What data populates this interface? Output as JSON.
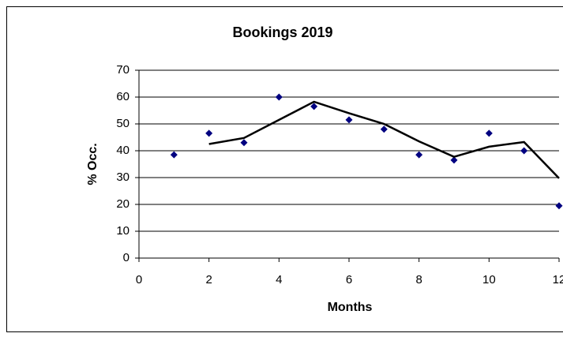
{
  "chart_data": {
    "type": "scatter",
    "title": "Bookings 2019",
    "x_label": "Months",
    "y_label": "% Occ.",
    "series": [
      {
        "color": "#000080",
        "x": [
          1,
          2,
          3,
          4,
          5,
          6,
          7,
          8,
          9,
          10,
          11,
          12
        ],
        "values": [
          38.5,
          46.5,
          43,
          60,
          56.5,
          51.5,
          48,
          38.5,
          36.5,
          46.5,
          40,
          19.5
        ]
      },
      {
        "type": "line",
        "color": "#000000",
        "x": [
          2,
          3,
          4,
          5,
          6,
          7,
          8,
          9,
          10,
          11,
          12
        ],
        "values": [
          42.5,
          44.75,
          51.5,
          58.25,
          54,
          50,
          43.5,
          37.75,
          41.5,
          43.25,
          29.75
        ]
      }
    ],
    "xlim": [
      0,
      12
    ],
    "xticks": [
      0,
      2,
      4,
      6,
      8,
      10,
      12
    ],
    "ylim": [
      0,
      70
    ],
    "yticks": [
      0,
      10,
      20,
      30,
      40,
      50,
      60,
      70
    ],
    "grid": true
  }
}
